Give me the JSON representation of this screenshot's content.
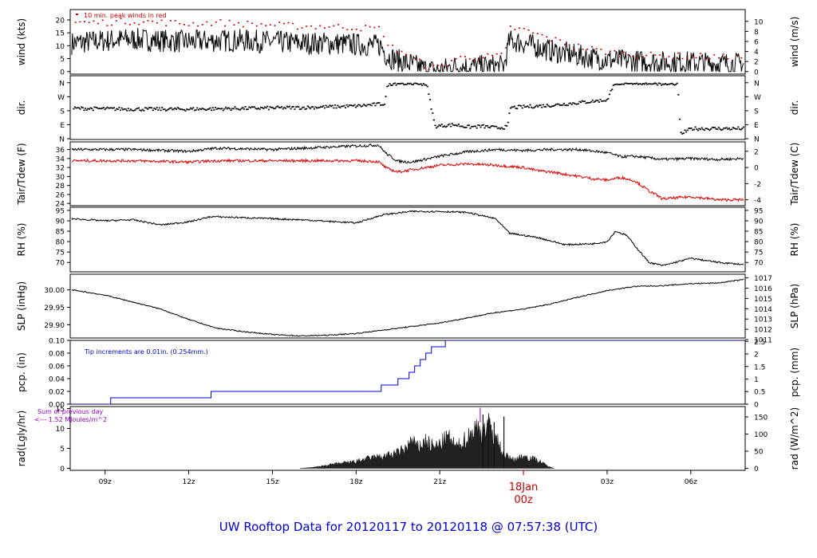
{
  "footer_title": "UW Rooftop Data for 20120117  to  20120118 @ 07:57:38  (UTC)",
  "date_marker": {
    "day": "18Jan",
    "hour": "00z"
  },
  "colors": {
    "main": "#000000",
    "peak": "#cc0000",
    "dew": "#dd0000",
    "precip": "#0000cc",
    "note": "#9900cc",
    "title": "#0000cc"
  },
  "chart_data": {
    "type": "line",
    "x_axis": {
      "unit": "UTC hour",
      "range": [
        7.75,
        31.95
      ],
      "ticks": [
        {
          "x": 9,
          "label": "09z"
        },
        {
          "x": 12,
          "label": "12z"
        },
        {
          "x": 15,
          "label": "15z"
        },
        {
          "x": 18,
          "label": "18z"
        },
        {
          "x": 21,
          "label": "21z"
        },
        {
          "x": 24,
          "label": ""
        },
        {
          "x": 27,
          "label": "03z"
        },
        {
          "x": 30,
          "label": "06z"
        }
      ]
    },
    "panels": [
      {
        "id": "wind",
        "left_label": "wind (kts)",
        "right_label": "wind (m/s)",
        "left_ticks": [
          0,
          5,
          10,
          15,
          20
        ],
        "left_range": [
          -1,
          24
        ],
        "right_ticks": [
          {
            "v": 0,
            "label": "0"
          },
          {
            "v": 3.89,
            "label": "2"
          },
          {
            "v": 7.78,
            "label": "4"
          },
          {
            "v": 11.66,
            "label": "6"
          },
          {
            "v": 15.55,
            "label": "8"
          },
          {
            "v": 19.44,
            "label": "10"
          }
        ],
        "annotation": "10 min. peak winds in red",
        "series": [
          {
            "name": "wind",
            "style": "noisy-line",
            "noise": 4.5,
            "x": [
              7.8,
              9,
              10,
              11,
              12,
              13,
              14,
              15,
              16,
              17,
              18,
              18.9,
              19.1,
              19.6,
              20.2,
              20.6,
              21,
              21.5,
              22,
              22.5,
              23,
              23.3,
              23.5,
              24,
              25,
              26,
              27,
              28,
              29,
              30,
              31,
              31.9
            ],
            "y": [
              11,
              12,
              12.5,
              12,
              11.5,
              12,
              12,
              11.5,
              11,
              11,
              10.5,
              10,
              6,
              4,
              2,
              0.5,
              0.5,
              2,
              2,
              2,
              2,
              2,
              12,
              11,
              8,
              6,
              4.5,
              4,
              3.5,
              3.5,
              3,
              3
            ]
          },
          {
            "name": "10 min. peak winds",
            "style": "points",
            "x": [
              7.8,
              9,
              10,
              11,
              12,
              13,
              14,
              15,
              16,
              17,
              18,
              18.9,
              19.1,
              19.6,
              20.2,
              20.6,
              21,
              21.5,
              22,
              22.5,
              23,
              23.3,
              23.5,
              24,
              25,
              26,
              27,
              28,
              29,
              30,
              31,
              31.9
            ],
            "y": [
              19,
              19,
              19.5,
              19,
              18.5,
              19,
              18.5,
              18,
              17.5,
              17.5,
              17,
              16.5,
              10,
              8,
              4,
              1.5,
              1.5,
              5,
              5.5,
              5.5,
              6,
              6,
              17,
              16,
              12.5,
              9.5,
              7.5,
              6.5,
              6,
              6,
              5.5,
              5.5
            ]
          }
        ]
      },
      {
        "id": "dir",
        "left_label": "dir.",
        "right_label": "dir.",
        "left_ticks_labeled": [
          {
            "v": 0,
            "label": "N"
          },
          {
            "v": 90,
            "label": "E"
          },
          {
            "v": 180,
            "label": "S"
          },
          {
            "v": 270,
            "label": "W"
          },
          {
            "v": 360,
            "label": "N"
          }
        ],
        "left_range": [
          -5,
          405
        ],
        "series": [
          {
            "name": "direction",
            "style": "points",
            "x": [
              7.8,
              10,
              12,
              14,
              16,
              17,
              18,
              19,
              19.1,
              19.3,
              20,
              20.5,
              20.8,
              21.5,
              22,
              22.5,
              23,
              23.4,
              23.5,
              25,
              27,
              27.2,
              28,
              29,
              29.5,
              29.6,
              30,
              31.9
            ],
            "y": [
              195,
              190,
              190,
              195,
              200,
              205,
              210,
              225,
              350,
              355,
              360,
              350,
              80,
              90,
              75,
              80,
              70,
              75,
              200,
              215,
              250,
              355,
              360,
              355,
              355,
              30,
              65,
              65
            ]
          }
        ]
      },
      {
        "id": "temp",
        "left_label": "Tair/Tdew (F)",
        "right_label": "Tair/Tdew (C)",
        "left_ticks": [
          24,
          26,
          28,
          30,
          32,
          34,
          36
        ],
        "left_range": [
          23.5,
          37.7
        ],
        "right_ticks": [
          {
            "v": 24.8,
            "label": "-4"
          },
          {
            "v": 28.4,
            "label": "-2"
          },
          {
            "v": 32.0,
            "label": "0"
          },
          {
            "v": 35.6,
            "label": "2"
          }
        ],
        "series": [
          {
            "name": "Tair",
            "style": "line",
            "noise": 0.3,
            "x": [
              7.8,
              10,
              12,
              13,
              15,
              18,
              18.8,
              19.1,
              19.5,
              20,
              21,
              22,
              23,
              24,
              25,
              26,
              27,
              27.5,
              28,
              29,
              30,
              31,
              31.9
            ],
            "y": [
              36,
              36,
              35.6,
              36.3,
              36,
              36.8,
              37,
              35,
              33.4,
              33.2,
              34.5,
              35.5,
              36,
              35.8,
              36,
              36,
              35.3,
              34.4,
              34.5,
              33.8,
              34,
              33.8,
              34
            ]
          },
          {
            "name": "Tdew",
            "style": "line",
            "noise": 0.3,
            "x": [
              7.8,
              10,
              12,
              13,
              15,
              18,
              18.8,
              19.1,
              19.5,
              20,
              21,
              22,
              23,
              24,
              24.5,
              25,
              26,
              26.5,
              27,
              27.5,
              28,
              28.5,
              29,
              30,
              31,
              31.9
            ],
            "y": [
              33.5,
              33.5,
              33.2,
              33.5,
              33.5,
              33.5,
              33.3,
              31.8,
              31,
              31.5,
              32.5,
              32.8,
              32.5,
              32,
              31.3,
              31,
              30,
              29.5,
              29.2,
              29.8,
              29,
              26.8,
              25,
              25.5,
              24.8,
              24.8
            ]
          }
        ]
      },
      {
        "id": "rh",
        "left_label": "RH (%)",
        "right_label": "RH (%)",
        "left_ticks": [
          70,
          75,
          80,
          85,
          90,
          95
        ],
        "left_range": [
          65.5,
          96.5
        ],
        "right_ticks": [
          {
            "v": 70,
            "label": "70"
          },
          {
            "v": 75,
            "label": "75"
          },
          {
            "v": 80,
            "label": "80"
          },
          {
            "v": 85,
            "label": "85"
          },
          {
            "v": 90,
            "label": "90"
          },
          {
            "v": 95,
            "label": "95"
          }
        ],
        "series": [
          {
            "name": "RH",
            "style": "line",
            "noise": 0.4,
            "x": [
              7.8,
              9,
              10,
              11,
              12,
              12.8,
              14,
              16,
              18,
              19,
              20,
              21,
              22,
              23,
              23.5,
              24.5,
              25.5,
              26.5,
              27,
              27.3,
              27.7,
              28,
              28.5,
              29,
              30,
              31,
              31.9
            ],
            "y": [
              91,
              90,
              90.5,
              88,
              89.5,
              92,
              91.5,
              90.5,
              89,
              93,
              94.5,
              94.5,
              94,
              91,
              84,
              82,
              78.5,
              79,
              80,
              85,
              83,
              78,
              70,
              68.5,
              72,
              70,
              69
            ]
          }
        ]
      },
      {
        "id": "slp",
        "left_label": "SLP (inHg)",
        "right_label": "SLP (hPa)",
        "left_ticks": [
          29.9,
          29.95,
          30.0
        ],
        "left_ticks_format": 2,
        "left_range": [
          29.862,
          30.045
        ],
        "right_ticks": [
          {
            "v": 29.8574,
            "label": "1011"
          },
          {
            "v": 29.8869,
            "label": "1012"
          },
          {
            "v": 29.9164,
            "label": "1013"
          },
          {
            "v": 29.946,
            "label": "1014"
          },
          {
            "v": 29.9755,
            "label": "1015"
          },
          {
            "v": 30.005,
            "label": "1016"
          },
          {
            "v": 30.0345,
            "label": "1017"
          }
        ],
        "series": [
          {
            "name": "SLP",
            "style": "line",
            "noise": 0.0015,
            "x": [
              7.8,
              9,
              10,
              11,
              12,
              13,
              14,
              15,
              16,
              17,
              18,
              19,
              20,
              21,
              22,
              23,
              24,
              25,
              26,
              27,
              28,
              29,
              30,
              31,
              31.9
            ],
            "y": [
              30.0,
              29.985,
              29.965,
              29.945,
              29.915,
              29.89,
              29.88,
              29.872,
              29.868,
              29.87,
              29.875,
              29.885,
              29.895,
              29.905,
              29.92,
              29.935,
              29.945,
              29.96,
              29.98,
              29.998,
              30.01,
              30.012,
              30.018,
              30.02,
              30.03
            ]
          }
        ]
      },
      {
        "id": "pcp",
        "left_label": "pcp. (in)",
        "right_label": "pcp. (mm)",
        "left_ticks": [
          0.0,
          0.02,
          0.04,
          0.06,
          0.08,
          0.1
        ],
        "left_ticks_format": 2,
        "left_range": [
          0,
          0.1
        ],
        "right_ticks": [
          {
            "v": 0,
            "label": "0"
          },
          {
            "v": 0.01969,
            "label": "0.5"
          },
          {
            "v": 0.03937,
            "label": "1"
          },
          {
            "v": 0.05906,
            "label": "1.5"
          },
          {
            "v": 0.07874,
            "label": "2"
          },
          {
            "v": 0.09843,
            "label": "2.5"
          }
        ],
        "annotation": "Tip increments are 0.01in. (0.254mm.)",
        "series": [
          {
            "name": "precip",
            "style": "step",
            "x": [
              7.8,
              9.2,
              12.8,
              18.9,
              19.5,
              19.9,
              20.1,
              20.3,
              20.4,
              20.5,
              20.6,
              20.7,
              21.2,
              21.8,
              31.95
            ],
            "y": [
              0.0,
              0.01,
              0.02,
              0.03,
              0.04,
              0.05,
              0.06,
              0.07,
              0.07,
              0.08,
              0.08,
              0.09,
              0.1,
              0.1,
              0.1
            ]
          }
        ]
      },
      {
        "id": "rad",
        "left_label": "rad(Lgly/hr)",
        "right_label": "rad (W/m^2)",
        "left_ticks": [
          0,
          5,
          10,
          15
        ],
        "left_range": [
          -0.5,
          15.5
        ],
        "right_ticks": [
          {
            "v": 0,
            "label": "0"
          },
          {
            "v": 4.3,
            "label": "50"
          },
          {
            "v": 8.6,
            "label": "100"
          },
          {
            "v": 12.9,
            "label": "150"
          }
        ],
        "annotation_line1": "Sum of previous day",
        "annotation_line2": "<--- 1.52 MJoules/m^2",
        "series": [
          {
            "name": "radiation",
            "style": "area",
            "x": [
              16.0,
              16.5,
              17.0,
              17.5,
              18.0,
              18.5,
              19.0,
              19.5,
              19.8,
              20.0,
              20.2,
              20.5,
              20.8,
              21.0,
              21.3,
              21.6,
              22.0,
              22.3,
              22.5,
              22.7,
              23.0,
              23.3,
              23.6,
              24.0,
              24.3,
              24.6,
              24.9,
              25.1
            ],
            "y": [
              0,
              0.3,
              1,
              1.5,
              2,
              3,
              3.5,
              4.5,
              6,
              8,
              6,
              8,
              6,
              7,
              9,
              6,
              9,
              12,
              10,
              13,
              9,
              4,
              2.5,
              3.5,
              3,
              2,
              0.5,
              0
            ]
          }
        ]
      }
    ]
  }
}
